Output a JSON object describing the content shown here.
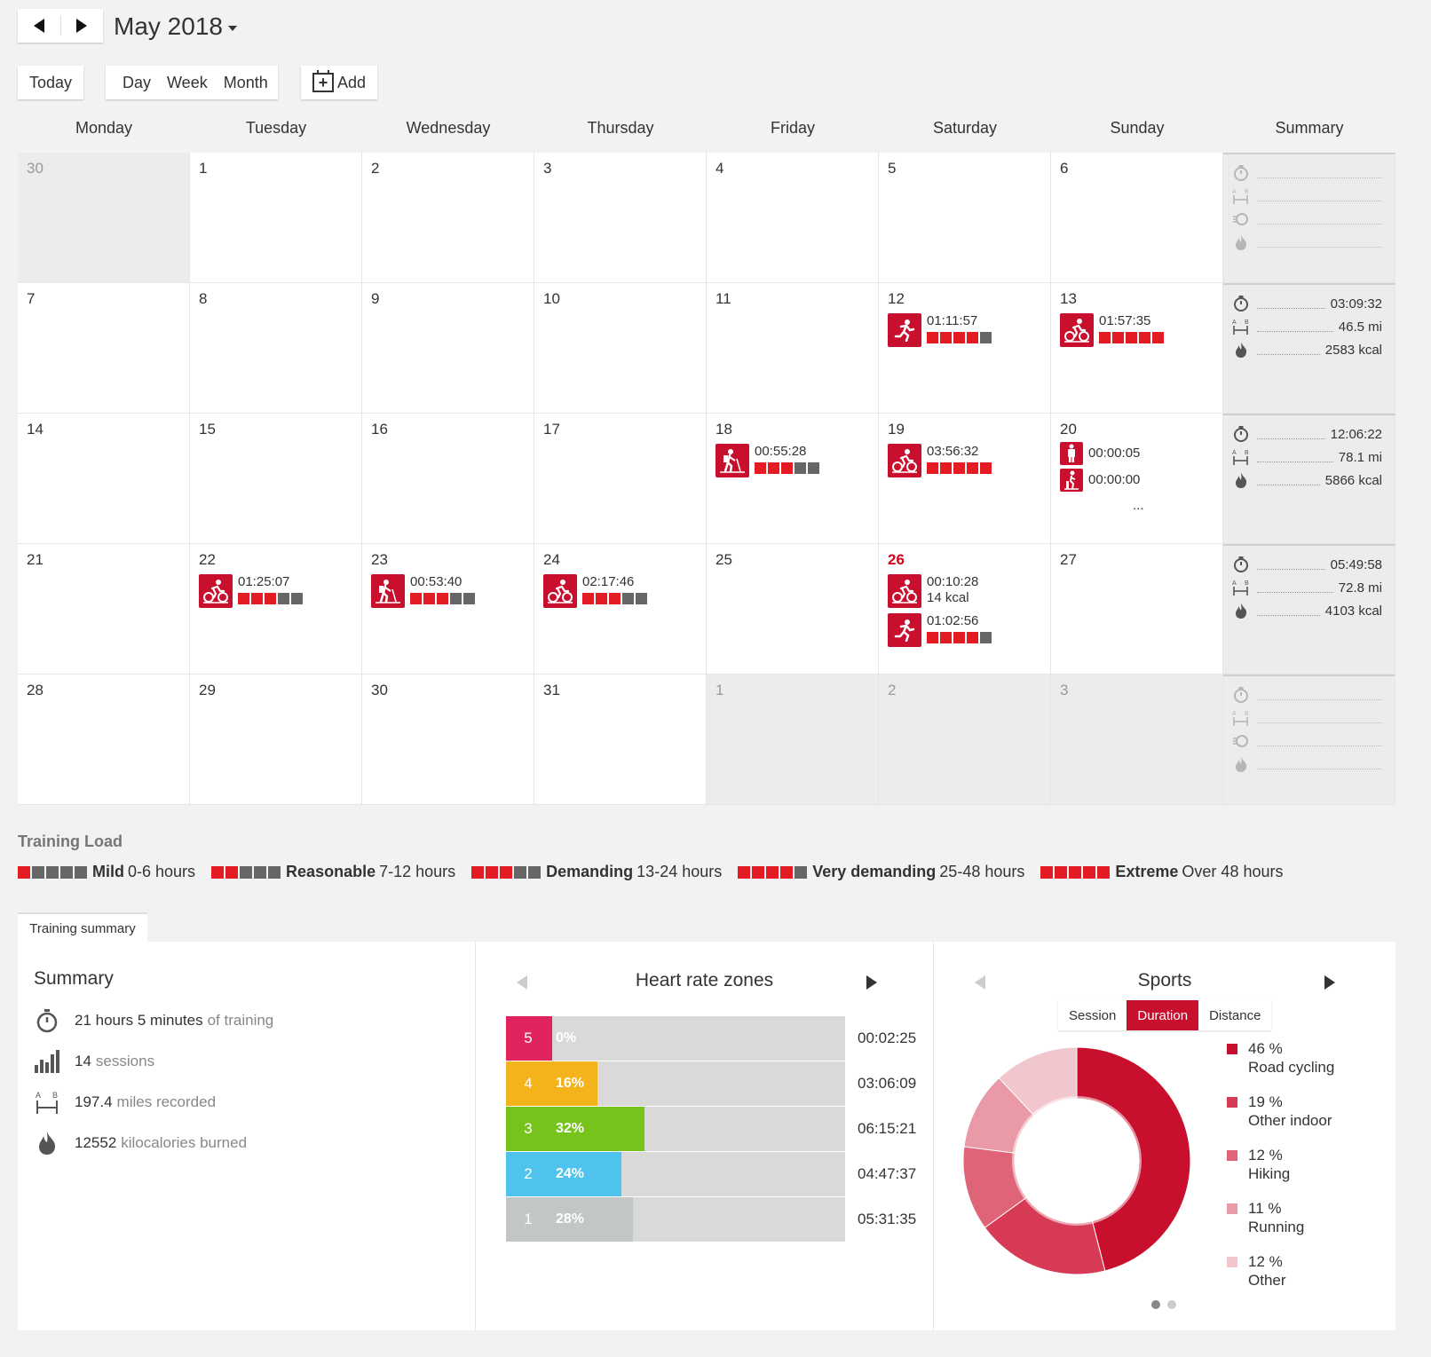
{
  "header": {
    "month_label": "May 2018",
    "today_label": "Today",
    "views": [
      "Day",
      "Week",
      "Month"
    ],
    "add_label": "Add"
  },
  "calendar": {
    "weekdays": [
      "Monday",
      "Tuesday",
      "Wednesday",
      "Thursday",
      "Friday",
      "Saturday",
      "Sunday",
      "Summary"
    ],
    "weeks": [
      {
        "days": [
          {
            "num": "30",
            "other": true
          },
          {
            "num": "1"
          },
          {
            "num": "2"
          },
          {
            "num": "3"
          },
          {
            "num": "4"
          },
          {
            "num": "5"
          },
          {
            "num": "6"
          }
        ],
        "summary": null
      },
      {
        "days": [
          {
            "num": "7"
          },
          {
            "num": "8"
          },
          {
            "num": "9"
          },
          {
            "num": "10"
          },
          {
            "num": "11"
          },
          {
            "num": "12",
            "events": [
              {
                "sport": "running",
                "time": "01:11:57",
                "load": [
                  1,
                  1,
                  1,
                  1,
                  0
                ]
              }
            ]
          },
          {
            "num": "13",
            "events": [
              {
                "sport": "cycling",
                "time": "01:57:35",
                "load": [
                  1,
                  1,
                  1,
                  1,
                  1
                ]
              }
            ]
          }
        ],
        "summary": {
          "duration": "03:09:32",
          "distance": "46.5 mi",
          "calories": "2583 kcal"
        }
      },
      {
        "days": [
          {
            "num": "14"
          },
          {
            "num": "15"
          },
          {
            "num": "16"
          },
          {
            "num": "17"
          },
          {
            "num": "18",
            "events": [
              {
                "sport": "hiking",
                "time": "00:55:28",
                "load": [
                  1,
                  1,
                  1,
                  0,
                  0
                ]
              }
            ]
          },
          {
            "num": "19",
            "events": [
              {
                "sport": "cycling",
                "time": "03:56:32",
                "load": [
                  1,
                  1,
                  1,
                  1,
                  1
                ]
              }
            ]
          },
          {
            "num": "20",
            "events": [
              {
                "sport": "other",
                "time": "00:00:05",
                "small": true
              },
              {
                "sport": "indoor",
                "time": "00:00:00",
                "small": true
              }
            ],
            "more": "..."
          }
        ],
        "summary": {
          "duration": "12:06:22",
          "distance": "78.1 mi",
          "calories": "5866 kcal"
        }
      },
      {
        "days": [
          {
            "num": "21"
          },
          {
            "num": "22",
            "events": [
              {
                "sport": "cycling",
                "time": "01:25:07",
                "load": [
                  1,
                  1,
                  1,
                  0,
                  0
                ]
              }
            ]
          },
          {
            "num": "23",
            "events": [
              {
                "sport": "hiking",
                "time": "00:53:40",
                "load": [
                  1,
                  1,
                  1,
                  0,
                  0
                ]
              }
            ]
          },
          {
            "num": "24",
            "events": [
              {
                "sport": "cycling",
                "time": "02:17:46",
                "load": [
                  1,
                  1,
                  1,
                  0,
                  0
                ]
              }
            ]
          },
          {
            "num": "25"
          },
          {
            "num": "26",
            "today": true,
            "events": [
              {
                "sport": "cycling",
                "time": "00:10:28",
                "extra": "14 kcal"
              },
              {
                "sport": "running",
                "time": "01:02:56",
                "load": [
                  1,
                  1,
                  1,
                  1,
                  0
                ]
              }
            ]
          },
          {
            "num": "27"
          }
        ],
        "summary": {
          "duration": "05:49:58",
          "distance": "72.8 mi",
          "calories": "4103 kcal"
        }
      },
      {
        "days": [
          {
            "num": "28"
          },
          {
            "num": "29"
          },
          {
            "num": "30"
          },
          {
            "num": "31"
          },
          {
            "num": "1",
            "other": true
          },
          {
            "num": "2",
            "other": true
          },
          {
            "num": "3",
            "other": true
          }
        ],
        "summary": null
      }
    ]
  },
  "training_load": {
    "title": "Training Load",
    "levels": [
      {
        "name": "Mild",
        "range": "0-6 hours",
        "load": [
          1,
          0,
          0,
          0,
          0
        ]
      },
      {
        "name": "Reasonable",
        "range": "7-12 hours",
        "load": [
          1,
          1,
          0,
          0,
          0
        ]
      },
      {
        "name": "Demanding",
        "range": "13-24 hours",
        "load": [
          1,
          1,
          1,
          0,
          0
        ]
      },
      {
        "name": "Very demanding",
        "range": "25-48 hours",
        "load": [
          1,
          1,
          1,
          1,
          0
        ]
      },
      {
        "name": "Extreme",
        "range": "Over 48 hours",
        "load": [
          1,
          1,
          1,
          1,
          1
        ]
      }
    ]
  },
  "training_summary": {
    "tab_label": "Training summary",
    "summary": {
      "title": "Summary",
      "duration_value": "21 hours 5 minutes",
      "duration_suffix": "of training",
      "sessions_value": "14",
      "sessions_suffix": "sessions",
      "distance_value": "197.4",
      "distance_suffix": "miles recorded",
      "calories_value": "12552",
      "calories_suffix": "kilocalories burned"
    },
    "heart_rate": {
      "title": "Heart rate zones",
      "zones": [
        {
          "zone": "5",
          "pct_label": "0%",
          "pct": 0,
          "time": "00:02:25",
          "color": "#e0245e",
          "fill": "#e0245e"
        },
        {
          "zone": "4",
          "pct_label": "16%",
          "pct": 16,
          "time": "03:06:09",
          "color": "#f5b31b",
          "fill": "#f5b31b"
        },
        {
          "zone": "3",
          "pct_label": "32%",
          "pct": 32,
          "time": "06:15:21",
          "color": "#76c41b",
          "fill": "#76c41b"
        },
        {
          "zone": "2",
          "pct_label": "24%",
          "pct": 24,
          "time": "04:47:37",
          "color": "#4fc3ee",
          "fill": "#4fc3ee"
        },
        {
          "zone": "1",
          "pct_label": "28%",
          "pct": 28,
          "time": "05:31:35",
          "color": "#c2c6c7",
          "fill": "#c2c6c7"
        }
      ]
    },
    "sports": {
      "title": "Sports",
      "tabs": [
        "Session",
        "Duration",
        "Distance"
      ],
      "active_tab": "Duration",
      "items": [
        {
          "pct_label": "46 %",
          "pct": 46,
          "name": "Road cycling",
          "color": "#c8102e"
        },
        {
          "pct_label": "19 %",
          "pct": 19,
          "name": "Other indoor",
          "color": "#d63a55"
        },
        {
          "pct_label": "12 %",
          "pct": 12,
          "name": "Hiking",
          "color": "#df6478"
        },
        {
          "pct_label": "11 %",
          "pct": 11,
          "name": "Running",
          "color": "#e99aa6"
        },
        {
          "pct_label": "12 %",
          "pct": 12,
          "name": "Other",
          "color": "#f2c6cd"
        }
      ]
    }
  }
}
